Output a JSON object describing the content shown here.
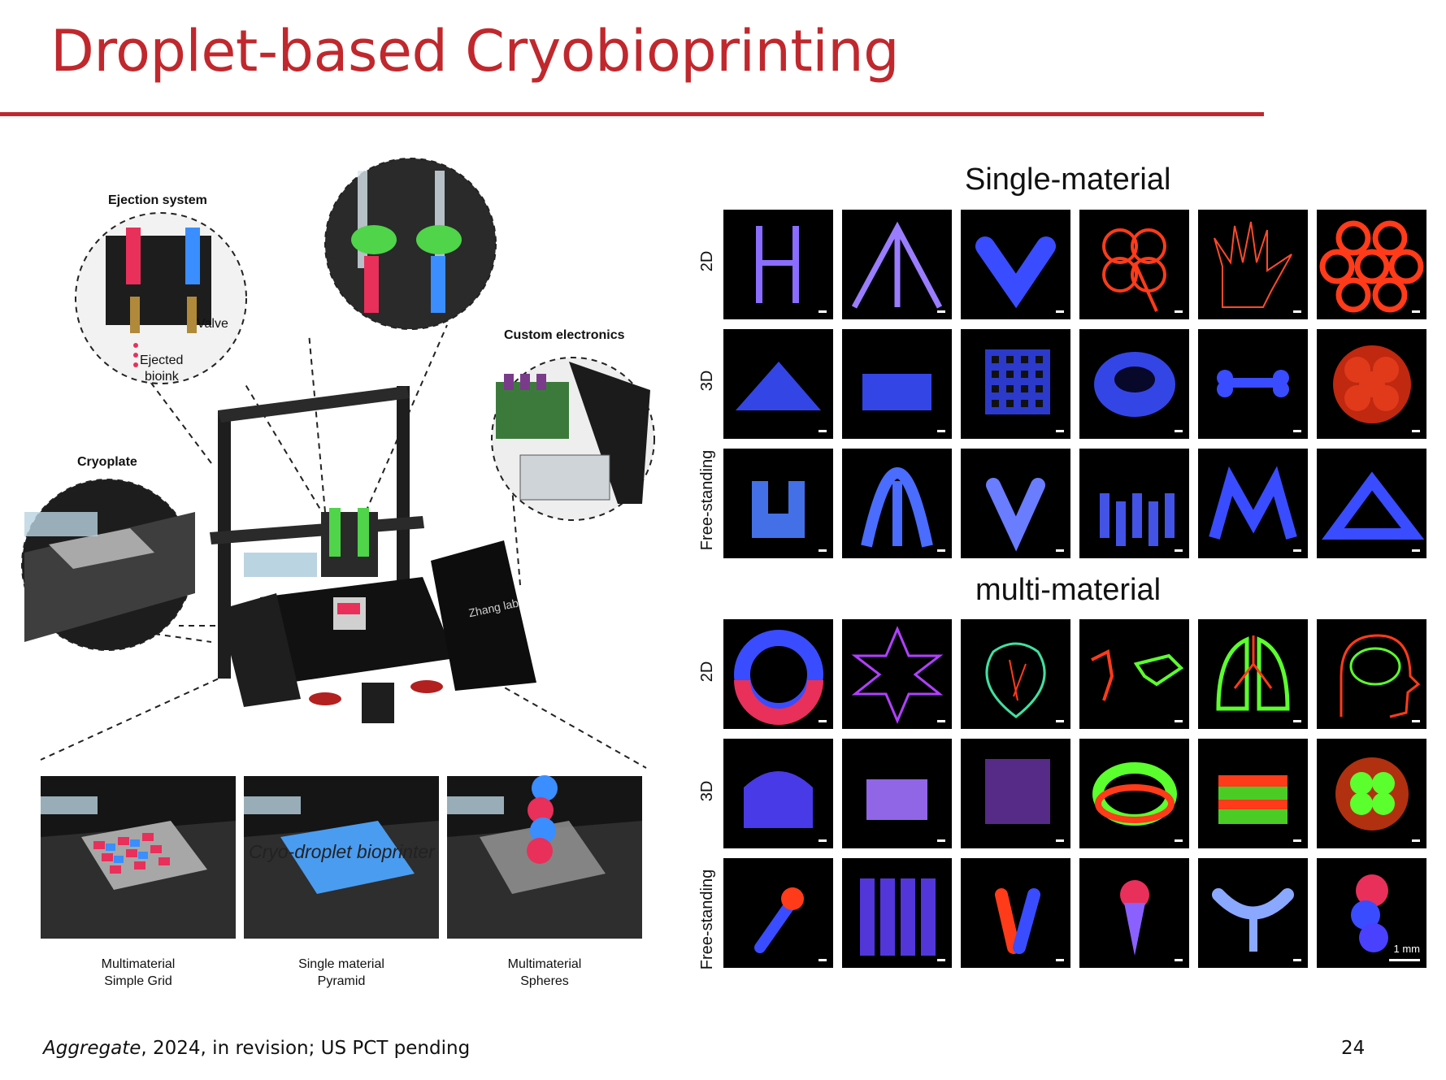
{
  "slide": {
    "title": "Droplet-based Cryobioprinting",
    "page_number": "24",
    "citation_journal": "Aggregate",
    "citation_rest": ", 2024, in revision; US PCT pending"
  },
  "printer_figure": {
    "callouts": {
      "ejection_system": "Ejection system",
      "valve": "Valve",
      "ejected": "Ejected",
      "bioink": "bioink",
      "custom_electronics": "Custom electronics",
      "cryoplate": "Cryoplate"
    },
    "brand_text": "Zhang lab",
    "printer_caption": "Cryo-droplet bioprinter",
    "examples": [
      {
        "line1": "Multimaterial",
        "line2": "Simple Grid"
      },
      {
        "line1": "Single material",
        "line2": "Pyramid"
      },
      {
        "line1": "Multimaterial",
        "line2": "Spheres"
      }
    ]
  },
  "gallery": {
    "single_material": {
      "title": "Single-material",
      "row_labels": [
        "2D",
        "3D",
        "Free-standing"
      ],
      "tiles": [
        [
          "H-shape",
          "tripod lines",
          "V-shape",
          "four-leaf clover",
          "hand outline",
          "honeycomb"
        ],
        [
          "pyramid",
          "rectangular block",
          "lattice cube",
          "ring tube",
          "bone",
          "sphere cluster"
        ],
        [
          "U-pillars",
          "tripod arch",
          "V-pillars",
          "pillar array",
          "m-arches",
          "triangular frame"
        ]
      ]
    },
    "multi_material": {
      "title": "multi-material",
      "row_labels": [
        "2D",
        "3D",
        "Free-standing"
      ],
      "tiles": [
        [
          "two-color ring",
          "six-point star",
          "heart outline",
          "world map",
          "lungs",
          "brain head"
        ],
        [
          "dome",
          "grid block",
          "lattice cube",
          "two-color ring tube",
          "layered cylinder",
          "sphere cluster"
        ],
        [
          "angled pillar",
          "pillar bundle",
          "V-pillars",
          "capped pillar",
          "Y-branch",
          "stacked spheres"
        ]
      ],
      "scale_bar_label": "1 mm"
    },
    "colors": {
      "blue": "#3a4cff",
      "red": "#ff3b1a",
      "green": "#5cff2e",
      "pink": "#e8305a",
      "purple": "#8a55ff"
    }
  }
}
